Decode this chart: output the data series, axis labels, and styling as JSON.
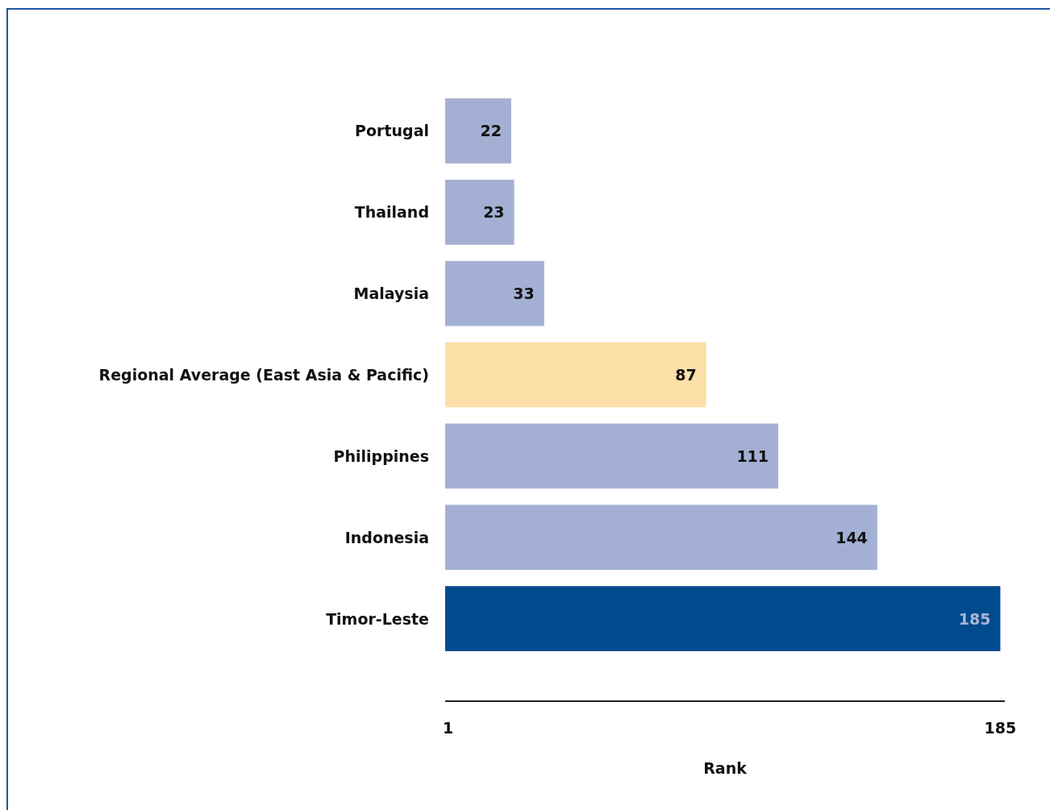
{
  "chart_data": {
    "type": "bar",
    "orientation": "horizontal",
    "categories": [
      "Portugal",
      "Thailand",
      "Malaysia",
      "Regional Average (East Asia & Pacific)",
      "Philippines",
      "Indonesia",
      "Timor-Leste"
    ],
    "values": [
      22,
      23,
      33,
      87,
      111,
      144,
      185
    ],
    "colors": [
      "#a4b0d3",
      "#a4b0d3",
      "#a4b0d3",
      "#fddfa8",
      "#a4b0d3",
      "#a4b0d3",
      "#004b8d"
    ],
    "xlim": [
      0,
      186.5
    ],
    "xticks": [
      1,
      185
    ],
    "xlabel": "Rank",
    "data_labels": true
  }
}
